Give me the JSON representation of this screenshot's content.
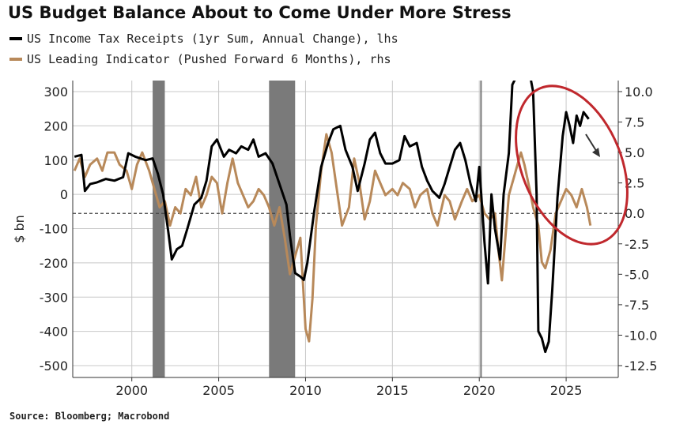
{
  "title": "US Budget Balance About to Come Under More Stress",
  "source": "Source: Bloomberg; Macrobond",
  "colors": {
    "series1": "#000000",
    "series2": "#b8895a",
    "recession": "#7a7a7a",
    "annotation": "#c0282d",
    "grid": "#c8c8c8"
  },
  "chart_data": {
    "type": "line",
    "xlim": [
      1996.6,
      2028.0
    ],
    "x_ticks": [
      "2000",
      "2005",
      "2010",
      "2015",
      "2020",
      "2025"
    ],
    "ylabel": "$ bn",
    "ylim_left": [
      -520,
      320
    ],
    "ylim_right": [
      -12.5,
      10.0
    ],
    "left_ticks": [
      "300",
      "200",
      "100",
      "0",
      "-100",
      "-200",
      "-300",
      "-400",
      "-500"
    ],
    "right_ticks": [
      "10.0",
      "7.5",
      "5.0",
      "2.5",
      "0.0",
      "-2.5",
      "-5.0",
      "-7.5",
      "-10.0",
      "-12.5"
    ],
    "zero_line_right": 0.0,
    "grid": true,
    "recession_bands": [
      [
        2001.2,
        2001.9
      ],
      [
        2007.9,
        2009.4
      ]
    ],
    "covid_marker_x": 2020.1,
    "series": [
      {
        "name": "US Income Tax Receipts (1yr Sum, Annual Change), lhs",
        "axis": "left",
        "points": [
          [
            1996.7,
            110
          ],
          [
            1997.1,
            115
          ],
          [
            1997.3,
            10
          ],
          [
            1997.6,
            30
          ],
          [
            1998.0,
            35
          ],
          [
            1998.5,
            45
          ],
          [
            1999.0,
            40
          ],
          [
            1999.5,
            50
          ],
          [
            1999.8,
            120
          ],
          [
            2000.2,
            110
          ],
          [
            2000.8,
            100
          ],
          [
            2001.2,
            105
          ],
          [
            2001.5,
            60
          ],
          [
            2001.8,
            0
          ],
          [
            2002.1,
            -110
          ],
          [
            2002.3,
            -190
          ],
          [
            2002.6,
            -160
          ],
          [
            2002.9,
            -150
          ],
          [
            2003.2,
            -100
          ],
          [
            2003.6,
            -30
          ],
          [
            2004.0,
            -10
          ],
          [
            2004.3,
            40
          ],
          [
            2004.6,
            140
          ],
          [
            2004.9,
            160
          ],
          [
            2005.3,
            110
          ],
          [
            2005.6,
            130
          ],
          [
            2006.0,
            120
          ],
          [
            2006.3,
            140
          ],
          [
            2006.7,
            130
          ],
          [
            2007.0,
            160
          ],
          [
            2007.3,
            110
          ],
          [
            2007.7,
            120
          ],
          [
            2008.1,
            90
          ],
          [
            2008.5,
            30
          ],
          [
            2008.9,
            -30
          ],
          [
            2009.1,
            -120
          ],
          [
            2009.4,
            -230
          ],
          [
            2009.7,
            -240
          ],
          [
            2009.9,
            -250
          ],
          [
            2010.1,
            -200
          ],
          [
            2010.5,
            -50
          ],
          [
            2010.9,
            80
          ],
          [
            2011.3,
            150
          ],
          [
            2011.6,
            190
          ],
          [
            2012.0,
            200
          ],
          [
            2012.3,
            130
          ],
          [
            2012.7,
            80
          ],
          [
            2013.0,
            10
          ],
          [
            2013.4,
            90
          ],
          [
            2013.7,
            160
          ],
          [
            2014.0,
            180
          ],
          [
            2014.3,
            120
          ],
          [
            2014.6,
            90
          ],
          [
            2015.0,
            90
          ],
          [
            2015.4,
            100
          ],
          [
            2015.7,
            170
          ],
          [
            2016.0,
            140
          ],
          [
            2016.4,
            150
          ],
          [
            2016.7,
            80
          ],
          [
            2017.0,
            40
          ],
          [
            2017.3,
            10
          ],
          [
            2017.7,
            -10
          ],
          [
            2018.0,
            30
          ],
          [
            2018.3,
            80
          ],
          [
            2018.6,
            130
          ],
          [
            2018.9,
            150
          ],
          [
            2019.2,
            100
          ],
          [
            2019.5,
            30
          ],
          [
            2019.8,
            -20
          ],
          [
            2020.0,
            80
          ],
          [
            2020.1,
            10
          ],
          [
            2020.3,
            -140
          ],
          [
            2020.5,
            -260
          ],
          [
            2020.7,
            0
          ],
          [
            2020.9,
            -100
          ],
          [
            2021.2,
            -190
          ],
          [
            2021.4,
            0
          ],
          [
            2021.7,
            120
          ],
          [
            2021.9,
            320
          ],
          [
            2022.1,
            340
          ],
          [
            2022.5,
            340
          ],
          [
            2022.8,
            380
          ],
          [
            2023.1,
            300
          ],
          [
            2023.3,
            0
          ],
          [
            2023.4,
            -400
          ],
          [
            2023.6,
            -420
          ],
          [
            2023.8,
            -460
          ],
          [
            2024.0,
            -430
          ],
          [
            2024.2,
            -280
          ],
          [
            2024.5,
            -10
          ],
          [
            2024.8,
            170
          ],
          [
            2025.0,
            240
          ],
          [
            2025.2,
            200
          ],
          [
            2025.4,
            150
          ],
          [
            2025.6,
            230
          ],
          [
            2025.8,
            200
          ],
          [
            2026.0,
            240
          ],
          [
            2026.3,
            220
          ]
        ]
      },
      {
        "name": "US Leading Indicator (Pushed Forward 6 Months), rhs",
        "axis": "right",
        "points": [
          [
            1996.7,
            3.5
          ],
          [
            1997.0,
            4.5
          ],
          [
            1997.3,
            3.0
          ],
          [
            1997.6,
            4.0
          ],
          [
            1998.0,
            4.5
          ],
          [
            1998.3,
            3.5
          ],
          [
            1998.6,
            5.0
          ],
          [
            1999.0,
            5.0
          ],
          [
            1999.3,
            4.0
          ],
          [
            1999.7,
            3.5
          ],
          [
            2000.0,
            2.0
          ],
          [
            2000.3,
            4.0
          ],
          [
            2000.6,
            5.0
          ],
          [
            2001.0,
            3.5
          ],
          [
            2001.3,
            2.0
          ],
          [
            2001.6,
            0.5
          ],
          [
            2001.9,
            1.0
          ],
          [
            2002.2,
            -1.0
          ],
          [
            2002.5,
            0.5
          ],
          [
            2002.8,
            0.0
          ],
          [
            2003.1,
            2.0
          ],
          [
            2003.4,
            1.5
          ],
          [
            2003.7,
            3.0
          ],
          [
            2004.0,
            0.5
          ],
          [
            2004.3,
            1.5
          ],
          [
            2004.6,
            3.0
          ],
          [
            2004.9,
            2.5
          ],
          [
            2005.2,
            0.0
          ],
          [
            2005.5,
            2.5
          ],
          [
            2005.8,
            4.5
          ],
          [
            2006.1,
            2.5
          ],
          [
            2006.4,
            1.5
          ],
          [
            2006.7,
            0.5
          ],
          [
            2007.0,
            1.0
          ],
          [
            2007.3,
            2.0
          ],
          [
            2007.6,
            1.5
          ],
          [
            2007.9,
            0.5
          ],
          [
            2008.2,
            -1.0
          ],
          [
            2008.5,
            0.5
          ],
          [
            2008.8,
            -2.0
          ],
          [
            2009.1,
            -5.0
          ],
          [
            2009.4,
            -3.5
          ],
          [
            2009.7,
            -2.0
          ],
          [
            2010.0,
            -9.5
          ],
          [
            2010.2,
            -10.5
          ],
          [
            2010.4,
            -7.0
          ],
          [
            2010.6,
            -1.0
          ],
          [
            2010.9,
            3.5
          ],
          [
            2011.2,
            6.5
          ],
          [
            2011.5,
            5.0
          ],
          [
            2011.8,
            2.0
          ],
          [
            2012.1,
            -1.0
          ],
          [
            2012.5,
            0.5
          ],
          [
            2012.8,
            4.5
          ],
          [
            2013.1,
            2.5
          ],
          [
            2013.4,
            -0.5
          ],
          [
            2013.7,
            1.0
          ],
          [
            2014.0,
            3.5
          ],
          [
            2014.3,
            2.5
          ],
          [
            2014.6,
            1.5
          ],
          [
            2015.0,
            2.0
          ],
          [
            2015.3,
            1.5
          ],
          [
            2015.6,
            2.5
          ],
          [
            2016.0,
            2.0
          ],
          [
            2016.3,
            0.5
          ],
          [
            2016.6,
            1.5
          ],
          [
            2017.0,
            2.0
          ],
          [
            2017.3,
            0.0
          ],
          [
            2017.6,
            -1.0
          ],
          [
            2018.0,
            1.5
          ],
          [
            2018.3,
            1.0
          ],
          [
            2018.6,
            -0.5
          ],
          [
            2019.0,
            1.0
          ],
          [
            2019.3,
            2.0
          ],
          [
            2019.6,
            1.0
          ],
          [
            2020.0,
            1.5
          ],
          [
            2020.3,
            0.0
          ],
          [
            2020.6,
            -0.5
          ],
          [
            2020.9,
            0.0
          ],
          [
            2021.1,
            -3.0
          ],
          [
            2021.3,
            -5.5
          ],
          [
            2021.5,
            -2.0
          ],
          [
            2021.7,
            1.5
          ],
          [
            2022.0,
            3.0
          ],
          [
            2022.2,
            4.0
          ],
          [
            2022.4,
            5.0
          ],
          [
            2022.6,
            4.0
          ],
          [
            2022.9,
            2.0
          ],
          [
            2023.1,
            0.5
          ],
          [
            2023.4,
            -1.0
          ],
          [
            2023.6,
            -4.0
          ],
          [
            2023.8,
            -4.5
          ],
          [
            2024.1,
            -3.0
          ],
          [
            2024.4,
            0.0
          ],
          [
            2024.7,
            1.0
          ],
          [
            2025.0,
            2.0
          ],
          [
            2025.3,
            1.5
          ],
          [
            2025.6,
            0.5
          ],
          [
            2025.9,
            2.0
          ],
          [
            2026.2,
            0.5
          ],
          [
            2026.4,
            -1.0
          ]
        ]
      }
    ]
  }
}
